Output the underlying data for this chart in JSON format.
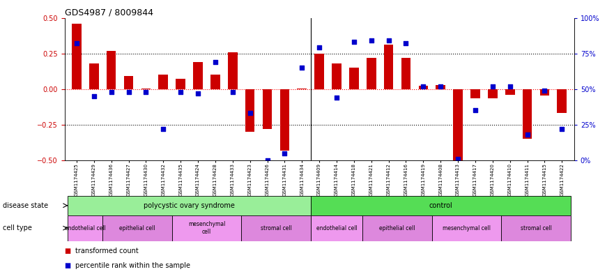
{
  "title": "GDS4987 / 8009844",
  "samples": [
    "GSM1174425",
    "GSM1174429",
    "GSM1174436",
    "GSM1174427",
    "GSM1174430",
    "GSM1174432",
    "GSM1174435",
    "GSM1174424",
    "GSM1174428",
    "GSM1174433",
    "GSM1174423",
    "GSM1174426",
    "GSM1174431",
    "GSM1174434",
    "GSM1174409",
    "GSM1174414",
    "GSM1174418",
    "GSM1174421",
    "GSM1174412",
    "GSM1174416",
    "GSM1174419",
    "GSM1174408",
    "GSM1174413",
    "GSM1174417",
    "GSM1174420",
    "GSM1174410",
    "GSM1174411",
    "GSM1174415",
    "GSM1174422"
  ],
  "bar_values": [
    0.46,
    0.18,
    0.27,
    0.09,
    0.005,
    0.1,
    0.07,
    0.19,
    0.1,
    0.26,
    -0.3,
    -0.28,
    -0.43,
    0.005,
    0.25,
    0.18,
    0.15,
    0.22,
    0.31,
    0.22,
    0.025,
    0.03,
    -0.5,
    -0.065,
    -0.065,
    -0.04,
    -0.35,
    -0.045,
    -0.17
  ],
  "percentile_values": [
    82,
    45,
    48,
    48,
    48,
    22,
    48,
    47,
    69,
    48,
    33,
    0,
    5,
    65,
    79,
    44,
    83,
    84,
    84,
    82,
    52,
    52,
    1,
    35,
    52,
    52,
    18,
    49,
    22
  ],
  "bar_color": "#cc0000",
  "dot_color": "#0000cc",
  "ylim": [
    -0.5,
    0.5
  ],
  "yticks": [
    -0.5,
    -0.25,
    0.0,
    0.25,
    0.5
  ],
  "y2ticks": [
    0,
    25,
    50,
    75,
    100
  ],
  "y2ticklabels": [
    "0%",
    "25%",
    "50%",
    "75%",
    "100%"
  ],
  "disease_state_groups": [
    {
      "label": "polycystic ovary syndrome",
      "start": 0,
      "end": 14,
      "color": "#99ee99"
    },
    {
      "label": "control",
      "start": 14,
      "end": 29,
      "color": "#55dd55"
    }
  ],
  "cell_type_groups": [
    {
      "label": "endothelial cell",
      "start": 0,
      "end": 2,
      "color": "#ee99ee"
    },
    {
      "label": "epithelial cell",
      "start": 2,
      "end": 6,
      "color": "#dd88dd"
    },
    {
      "label": "mesenchymal\ncell",
      "start": 6,
      "end": 10,
      "color": "#ee99ee"
    },
    {
      "label": "stromal cell",
      "start": 10,
      "end": 14,
      "color": "#dd88dd"
    },
    {
      "label": "endothelial cell",
      "start": 14,
      "end": 17,
      "color": "#ee99ee"
    },
    {
      "label": "epithelial cell",
      "start": 17,
      "end": 21,
      "color": "#dd88dd"
    },
    {
      "label": "mesenchymal cell",
      "start": 21,
      "end": 25,
      "color": "#ee99ee"
    },
    {
      "label": "stromal cell",
      "start": 25,
      "end": 29,
      "color": "#dd88dd"
    }
  ],
  "legend_items": [
    {
      "label": "transformed count",
      "color": "#cc0000"
    },
    {
      "label": "percentile rank within the sample",
      "color": "#0000cc"
    }
  ],
  "disease_state_label": "disease state",
  "cell_type_label": "cell type"
}
